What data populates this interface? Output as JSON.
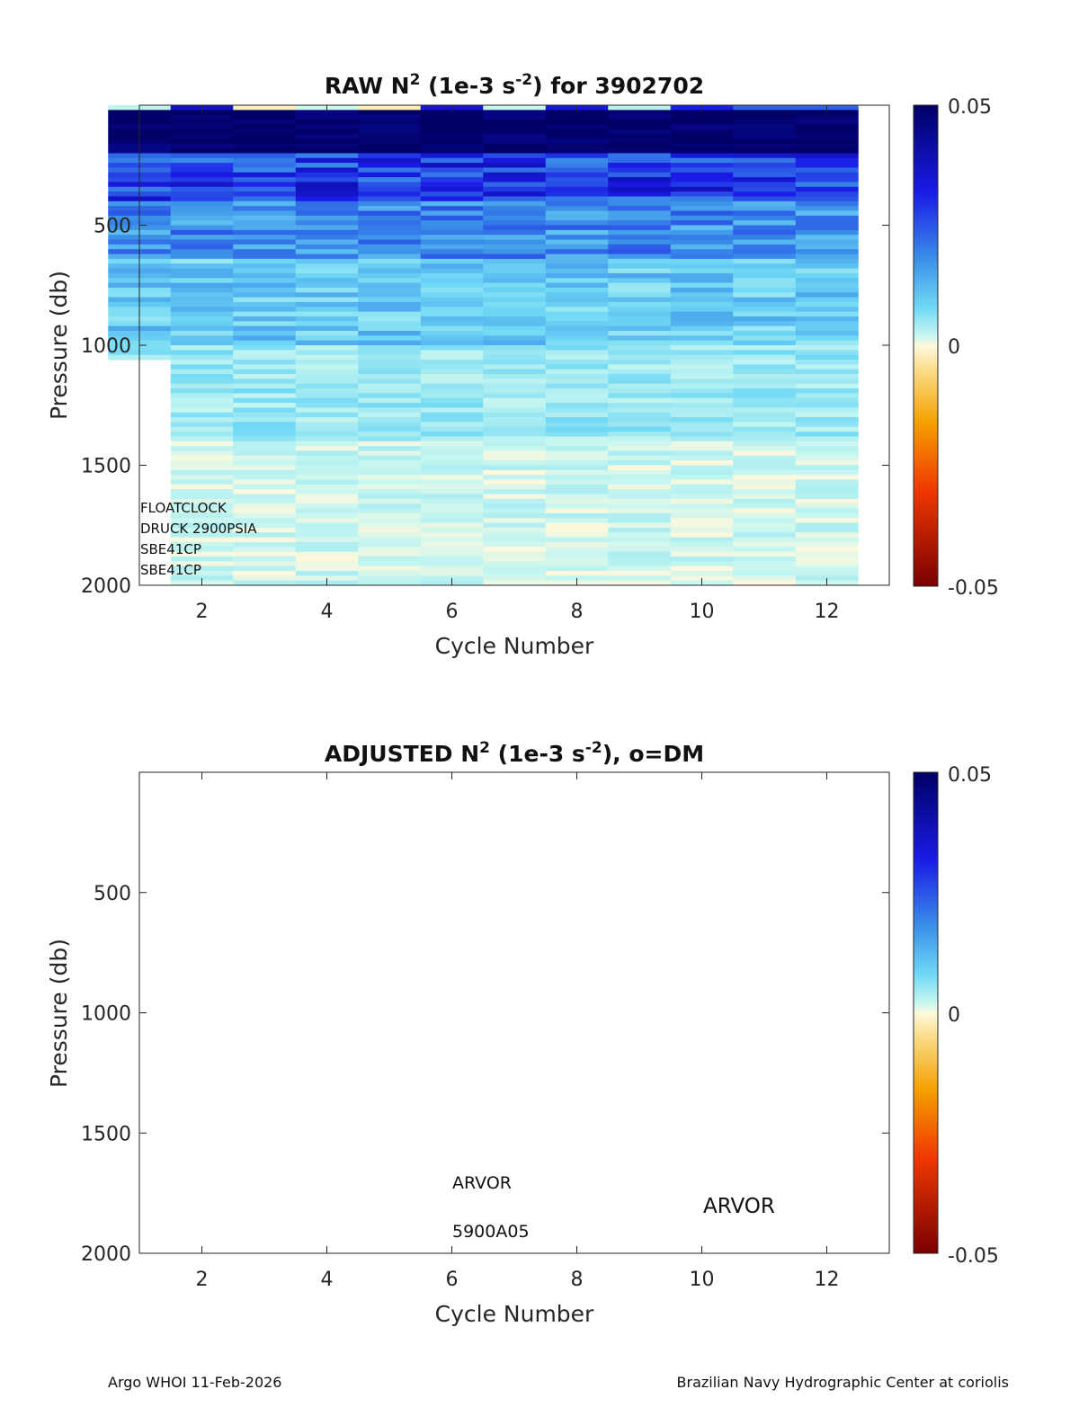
{
  "chart_data": [
    {
      "type": "heatmap",
      "title_parts": [
        "RAW N",
        "2",
        " (1e-3 s",
        "-2",
        ") for 3902702"
      ],
      "xlabel": "Cycle Number",
      "ylabel": "Pressure (db)",
      "xlim": [
        1,
        13
      ],
      "ylim": [
        0,
        2000
      ],
      "y_reversed": true,
      "xticks": [
        2,
        4,
        6,
        8,
        10,
        12
      ],
      "yticks": [
        500,
        1000,
        1500,
        2000
      ],
      "cycles": [
        1,
        2,
        3,
        4,
        5,
        6,
        7,
        8,
        9,
        10,
        11,
        12
      ],
      "max_pressure": [
        1060,
        2000,
        2000,
        2000,
        2000,
        2000,
        2000,
        2000,
        2000,
        2000,
        2000,
        2000
      ],
      "colorbar": {
        "min": -0.05,
        "max": 0.05,
        "ticks": [
          "0.05",
          "0",
          "-0.05"
        ]
      },
      "annotations": [
        "FLOATCLOCK",
        "DRUCK 2900PSIA",
        "SBE41CP",
        "SBE41CP"
      ]
    },
    {
      "type": "heatmap",
      "title_parts": [
        "ADJUSTED N",
        "2",
        " (1e-3 s",
        "-2",
        "), o=DM"
      ],
      "xlabel": "Cycle Number",
      "ylabel": "Pressure (db)",
      "xlim": [
        1,
        13
      ],
      "ylim": [
        0,
        2000
      ],
      "y_reversed": true,
      "xticks": [
        2,
        4,
        6,
        8,
        10,
        12
      ],
      "yticks": [
        500,
        1000,
        1500,
        2000
      ],
      "colorbar": {
        "min": -0.05,
        "max": 0.05,
        "ticks": [
          "0.05",
          "0",
          "-0.05"
        ]
      },
      "annotations": [
        "ARVOR",
        "5900A05",
        "ARVOR"
      ]
    }
  ],
  "footer": {
    "left": "Argo WHOI 11-Feb-2026",
    "right": "Brazilian Navy Hydrographic Center at coriolis"
  }
}
